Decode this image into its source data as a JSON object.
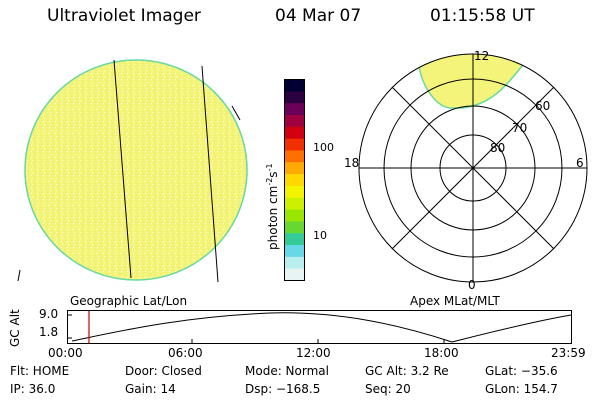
{
  "header": {
    "instrument": "Ultraviolet Imager",
    "date": "04 Mar 07",
    "time": "01:15:58 UT"
  },
  "colorbar": {
    "unit_label": "photon cm",
    "unit_sup1": "-2",
    "unit_mid": "s",
    "unit_sup2": "-1",
    "tick_100": "100",
    "tick_10": "10",
    "colors": [
      "#000033",
      "#2a0040",
      "#6a005a",
      "#a00040",
      "#d00010",
      "#f03000",
      "#ff7000",
      "#ffaa00",
      "#ffd800",
      "#f4f400",
      "#ccf000",
      "#99e600",
      "#66d830",
      "#33cc99",
      "#66d8e8",
      "#b8eeee",
      "#e8f4f4"
    ]
  },
  "polar": {
    "label_12": "12",
    "label_18": "18",
    "label_6": "6",
    "label_0": "0",
    "label_60": "60",
    "label_70": "70",
    "label_80": "80"
  },
  "disk": {
    "fill": "#f4f47a",
    "rim": "#66d8a0"
  },
  "altitude_strip": {
    "geo_label": "Geographic Lat/Lon",
    "apex_label": "Apex MLat/MLT",
    "y_axis_label": "GC Alt",
    "y_top": "9.0",
    "y_bottom": "1.8",
    "x_ticks": [
      "00:00",
      "06:00",
      "12:00",
      "18:00",
      "23:59"
    ],
    "current_time_marker_color": "#cc0000"
  },
  "status": {
    "flt": "Flt: HOME",
    "door": "Door: Closed",
    "mode": "Mode: Normal",
    "gc_alt": "GC Alt: 3.2 Re",
    "glat": "GLat: −35.6",
    "ip": "IP: 36.0",
    "gain": "Gain: 14",
    "dsp": "Dsp: −168.5",
    "seq": "Seq: 20",
    "glon": "GLon: 154.7"
  }
}
